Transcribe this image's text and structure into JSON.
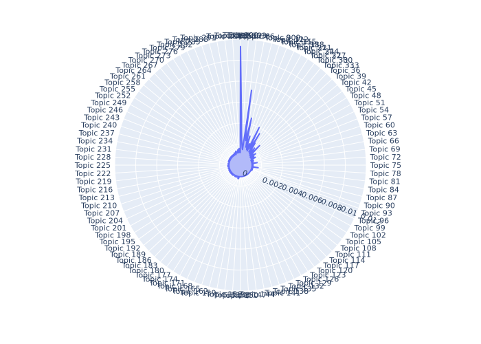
{
  "chart_data": {
    "type": "polar-area",
    "angular_tick_labels": [
      "Topic 0",
      "Topic 3",
      "Topic 6",
      "Topic 9",
      "Topic 12",
      "Topic 15",
      "Topic 18",
      "Topic 21",
      "Topic 24",
      "Topic 27",
      "Topic 30",
      "Topic 33",
      "Topic 36",
      "Topic 39",
      "Topic 42",
      "Topic 45",
      "Topic 48",
      "Topic 51",
      "Topic 54",
      "Topic 57",
      "Topic 60",
      "Topic 63",
      "Topic 66",
      "Topic 69",
      "Topic 72",
      "Topic 75",
      "Topic 78",
      "Topic 81",
      "Topic 84",
      "Topic 87",
      "Topic 90",
      "Topic 93",
      "Topic 96",
      "Topic 99",
      "Topic 102",
      "Topic 105",
      "Topic 108",
      "Topic 111",
      "Topic 114",
      "Topic 117",
      "Topic 120",
      "Topic 123",
      "Topic 126",
      "Topic 129",
      "Topic 132",
      "Topic 135",
      "Topic 138",
      "Topic 141",
      "Topic 144",
      "Topic 147",
      "Topic 150",
      "Topic 153",
      "Topic 156",
      "Topic 159",
      "Topic 162",
      "Topic 165",
      "Topic 168",
      "Topic 171",
      "Topic 174",
      "Topic 177",
      "Topic 180",
      "Topic 183",
      "Topic 186",
      "Topic 189",
      "Topic 192",
      "Topic 195",
      "Topic 198",
      "Topic 201",
      "Topic 204",
      "Topic 207",
      "Topic 210",
      "Topic 213",
      "Topic 216",
      "Topic 219",
      "Topic 222",
      "Topic 225",
      "Topic 228",
      "Topic 231",
      "Topic 234",
      "Topic 237",
      "Topic 240",
      "Topic 243",
      "Topic 246",
      "Topic 249",
      "Topic 252",
      "Topic 255",
      "Topic 258",
      "Topic 261",
      "Topic 264",
      "Topic 267",
      "Topic 270",
      "Topic 273",
      "Topic 276",
      "Topic 279",
      "Topic 282",
      "Topic 285",
      "Topic 288",
      "Topic 291",
      "Topic 294",
      "Topic 297",
      "Topic 300",
      "Topic 303",
      "Topic 306",
      "Topic 309",
      "Topic 312",
      "Topic 315",
      "Topic 318",
      "Topic 321",
      "Topic 324",
      "Topic 327",
      "Topic 330",
      "Topic 333"
    ],
    "radial_tick_labels": [
      "0",
      "0.002",
      "0.004",
      "0.006",
      "0.008",
      "0.01",
      "0.012"
    ],
    "radial_range": [
      0,
      0.012
    ],
    "radial_axis_angle_deg": -20,
    "topic_count": 300,
    "series": [
      {
        "values": [
          0.0113,
          0.0045,
          0.0027,
          0.0021,
          0.0018,
          0.0016,
          0.0015,
          0.0072,
          0.0034,
          0.0026,
          0.0024,
          0.0046,
          0.0028,
          0.0021,
          0.0018,
          0.0029,
          0.002,
          0.0017,
          0.0016,
          0.0022,
          0.0016,
          0.0015,
          0.004,
          0.0024,
          0.0022,
          0.0018,
          0.0035,
          0.0015,
          0.0025,
          0.0019,
          0.0017,
          0.0015,
          0.0014,
          0.0021,
          0.0015,
          0.0014,
          0.0013,
          0.0026,
          0.0013,
          0.0013,
          0.0016,
          0.0013,
          0.0012,
          0.0013,
          0.0018,
          0.0013,
          0.0012,
          0.0012,
          0.0015,
          0.0012,
          0.0013,
          0.0012,
          0.0016,
          0.0012,
          0.0011,
          0.0012,
          0.0011,
          0.0013,
          0.0012,
          0.0011,
          0.0013,
          0.0012,
          0.0011,
          0.0012,
          0.0011,
          0.0012,
          0.0011,
          0.0012,
          0.0016,
          0.0011,
          0.0011,
          0.0012,
          0.0011,
          0.0011,
          0.0012,
          0.0011,
          0.0011,
          0.0012,
          0.0012,
          0.0011,
          0.0012,
          0.0011,
          0.0017,
          0.0011,
          0.0011,
          0.0012,
          0.0011,
          0.0011,
          0.0012,
          0.0011,
          0.0011,
          0.0011,
          0.0012,
          0.0011,
          0.0011,
          0.0011,
          0.0012,
          0.0011,
          0.0011,
          0.0011,
          0.0011,
          0.0011,
          0.0011,
          0.0011,
          0.0011,
          0.0011,
          0.0011,
          0.0011,
          0.0011,
          0.0011,
          0.0011,
          0.0011,
          0.0011,
          0.0011,
          0.0011,
          0.0011,
          0.0011,
          0.0011,
          0.0011,
          0.0011,
          0.0011,
          0.0011,
          0.0011,
          0.0011,
          0.0011,
          0.0011,
          0.0011,
          0.0011,
          0.0011,
          0.0011,
          0.0011,
          0.0011,
          0.0011,
          0.0011,
          0.0011,
          0.0011,
          0.0011,
          0.0011,
          0.0011,
          0.0011,
          0.0011,
          0.0011,
          0.0011,
          0.0011,
          0.0011,
          0.0011,
          0.0011,
          0.0011,
          0.0011,
          0.0011,
          0.0011,
          0.0011,
          0.0011,
          0.0011,
          0.0011,
          0.0011,
          0.0012,
          0.0013,
          0.0011,
          0.0013,
          0.0012,
          0.0011,
          0.0011,
          0.0011,
          0.0011,
          0.0011,
          0.0012,
          0.0011,
          0.0012,
          0.0011,
          0.0011,
          0.0011,
          0.0012,
          0.0011,
          0.0011,
          0.0011,
          0.0011,
          0.0011,
          0.0011,
          0.0011,
          0.0012,
          0.0011,
          0.0012,
          0.0012,
          0.0011,
          0.0011,
          0.0012,
          0.0011,
          0.0011,
          0.0011,
          0.0012,
          0.0011,
          0.0011,
          0.0011,
          0.0012,
          0.0011,
          0.0011,
          0.0011,
          0.0012,
          0.0011,
          0.0011,
          0.0012,
          0.0011,
          0.0011,
          0.0011,
          0.0011,
          0.0012,
          0.0011,
          0.0011,
          0.0011,
          0.0011,
          0.0011,
          0.0012,
          0.0011,
          0.0011,
          0.0011,
          0.0011,
          0.0011,
          0.0012,
          0.0011,
          0.0011,
          0.0012,
          0.0011,
          0.0011,
          0.0012,
          0.0011,
          0.0011,
          0.0011,
          0.0011,
          0.0011,
          0.0012,
          0.0011,
          0.0011,
          0.0011,
          0.0011,
          0.0011,
          0.0011,
          0.0012,
          0.0011,
          0.0011,
          0.0011,
          0.0012,
          0.0011,
          0.0011,
          0.0012,
          0.0011,
          0.0011,
          0.0011,
          0.0012,
          0.0012,
          0.0011,
          0.0011,
          0.0012,
          0.0011,
          0.0011,
          0.0012,
          0.0011,
          0.0011,
          0.0012,
          0.0012,
          0.0011,
          0.0012,
          0.0012,
          0.0011,
          0.0012,
          0.0011,
          0.0012,
          0.0011,
          0.0012,
          0.0012,
          0.0011,
          0.0012,
          0.0012,
          0.0011,
          0.0012,
          0.0011,
          0.0012,
          0.0013,
          0.0012,
          0.0012,
          0.0012,
          0.0011,
          0.0013,
          0.0012,
          0.0014,
          0.0012,
          0.0012,
          0.0013,
          0.0012,
          0.0012,
          0.0014,
          0.0013,
          0.0015,
          0.0013,
          0.0012,
          0.0013,
          0.0016,
          0.0014,
          0.0014,
          0.0012
        ]
      }
    ],
    "colors": {
      "plot_bg": "#e5ecf6",
      "grid": "#ffffff",
      "fill": "#a4aef8",
      "line": "#636efa",
      "tick_text": "#2a3f5f"
    },
    "grid": true,
    "legend": "none"
  }
}
